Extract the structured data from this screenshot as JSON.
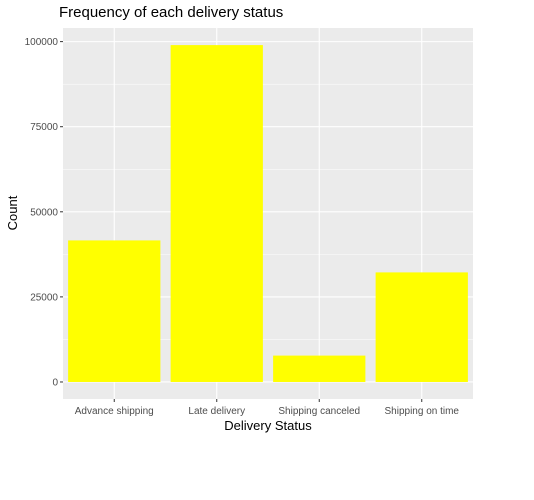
{
  "chart_data": {
    "type": "bar",
    "title": "Frequency of each delivery status",
    "xlabel": "Delivery Status",
    "ylabel": "Count",
    "categories": [
      "Advance shipping",
      "Late delivery",
      "Shipping canceled",
      "Shipping on time"
    ],
    "values": [
      41592,
      98977,
      7754,
      32196
    ],
    "ylim": [
      -5000,
      104000
    ],
    "yticks": [
      0,
      25000,
      50000,
      75000,
      100000
    ],
    "ytick_labels": [
      "0",
      "25000",
      "50000",
      "75000",
      "100000"
    ],
    "grid": true,
    "legend": "none",
    "colors": {
      "bar": "#ffff00",
      "panel": "#ebebeb",
      "grid": "#ffffff",
      "tick_text": "#4d4d4d",
      "tick_mark": "#333333"
    }
  }
}
